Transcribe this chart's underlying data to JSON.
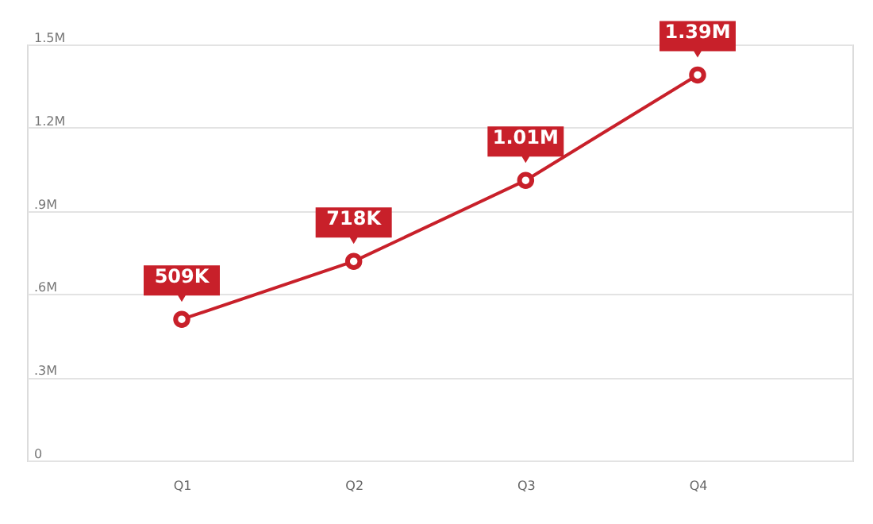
{
  "chart_data": {
    "type": "line",
    "categories": [
      "Q1",
      "Q2",
      "Q3",
      "Q4"
    ],
    "series": [
      {
        "color": "#c8202a",
        "values": [
          509000,
          718000,
          1010000,
          1390000
        ],
        "value_labels": [
          "509K",
          "718K",
          "1.01M",
          "1.39M"
        ]
      }
    ],
    "ylim": [
      0,
      1500000
    ],
    "yticks": [
      0,
      {
        "value": 300000,
        "label": ".3M"
      },
      {
        "value": 600000,
        "label": ".6M"
      },
      {
        "value": 900000,
        "label": ".9M"
      },
      {
        "value": 1200000,
        "label": "1.2M"
      },
      {
        "value": 1500000,
        "label": "1.5M"
      }
    ],
    "grid": "y",
    "marker": "circle",
    "line_style": "solid"
  }
}
